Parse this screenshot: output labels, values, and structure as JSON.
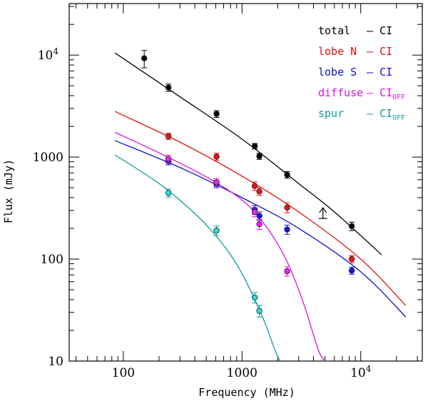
{
  "chart_data": {
    "type": "scatter",
    "title": "",
    "xlabel": "Frequency (MHz)",
    "ylabel": "Flux (mJy)",
    "xscale": "log",
    "yscale": "log",
    "xlim": [
      35,
      33000
    ],
    "ylim": [
      10,
      32000
    ],
    "x_ticks": [
      {
        "value": 100,
        "label": "100"
      },
      {
        "value": 1000,
        "label": "1000"
      },
      {
        "value": 10000,
        "label": "10",
        "sup": "4"
      }
    ],
    "y_ticks": [
      {
        "value": 10,
        "label": "10"
      },
      {
        "value": 100,
        "label": "100"
      },
      {
        "value": 1000,
        "label": "1000"
      },
      {
        "value": 10000,
        "label": "10",
        "sup": "4"
      }
    ],
    "legend_position": "top-right",
    "series": [
      {
        "name": "total",
        "legend_label": "total",
        "legend_dash": "– CI",
        "legend_sub": "",
        "color": "#000000",
        "marker_fill": "#000000",
        "x": [
          150,
          240,
          610,
          1280,
          1400,
          2400,
          8400
        ],
        "y": [
          9300,
          4800,
          2650,
          1280,
          1020,
          670,
          210
        ],
        "err": [
          1800,
          400,
          200,
          80,
          70,
          50,
          20
        ],
        "fit_x": [
          85,
          300,
          1000,
          3000,
          6000,
          15000
        ],
        "fit_y": [
          10500,
          3900,
          1500,
          550,
          290,
          110
        ]
      },
      {
        "name": "lobe N",
        "legend_label": "lobe N",
        "legend_dash": "– CI",
        "legend_sub": "",
        "color": "#dd1111",
        "marker_fill": "#ee1111",
        "x": [
          240,
          610,
          1280,
          1400,
          2400,
          8400
        ],
        "y": [
          1600,
          1010,
          520,
          460,
          320,
          100
        ],
        "err": [
          110,
          80,
          50,
          40,
          35,
          8
        ],
        "fit_x": [
          85,
          300,
          1000,
          3000,
          10000,
          24000
        ],
        "fit_y": [
          2800,
          1400,
          650,
          290,
          100,
          35
        ]
      },
      {
        "name": "lobe S",
        "legend_label": "lobe S",
        "legend_dash": "– CI",
        "legend_sub": "",
        "color": "#1111cc",
        "marker_fill": "#1111ee",
        "x": [
          240,
          610,
          1280,
          1400,
          2400,
          8400
        ],
        "y": [
          910,
          545,
          305,
          265,
          195,
          77
        ],
        "err": [
          70,
          45,
          30,
          25,
          20,
          6
        ],
        "fit_x": [
          85,
          300,
          1000,
          3000,
          10000,
          24000
        ],
        "fit_y": [
          1450,
          790,
          400,
          200,
          75,
          27
        ]
      },
      {
        "name": "diffuse",
        "legend_label": "diffuse",
        "legend_dash": "– CI",
        "legend_sub": "OFF",
        "color": "#dd11dd",
        "marker_fill": "#ee22ee",
        "x": [
          240,
          610,
          1280,
          1400,
          2400
        ],
        "y": [
          960,
          565,
          290,
          220,
          76
        ],
        "err": [
          80,
          50,
          30,
          25,
          8
        ],
        "fit_x": [
          85,
          200,
          500,
          1000,
          1500,
          2000,
          2500,
          3000,
          3500,
          4000,
          4500,
          5000
        ],
        "fit_y": [
          1750,
          1100,
          640,
          380,
          230,
          140,
          85,
          50,
          30,
          18,
          12,
          10
        ]
      },
      {
        "name": "spur",
        "legend_label": "spur",
        "legend_dash": "– CI",
        "legend_sub": "OFF",
        "color": "#119999",
        "marker_fill": "#22dddd",
        "x": [
          240,
          610,
          1280,
          1400
        ],
        "y": [
          445,
          190,
          42,
          31
        ],
        "err": [
          40,
          20,
          5,
          4
        ],
        "fit_x": [
          85,
          200,
          400,
          600,
          800,
          1000,
          1200,
          1400,
          1600,
          1800,
          2000,
          2100
        ],
        "fit_y": [
          1050,
          550,
          280,
          170,
          110,
          72,
          47,
          32,
          22,
          15,
          11,
          10
        ]
      }
    ],
    "annotations": [
      {
        "type": "upper-arrow",
        "x": 4800,
        "y": 250,
        "color": "#000000"
      }
    ]
  }
}
